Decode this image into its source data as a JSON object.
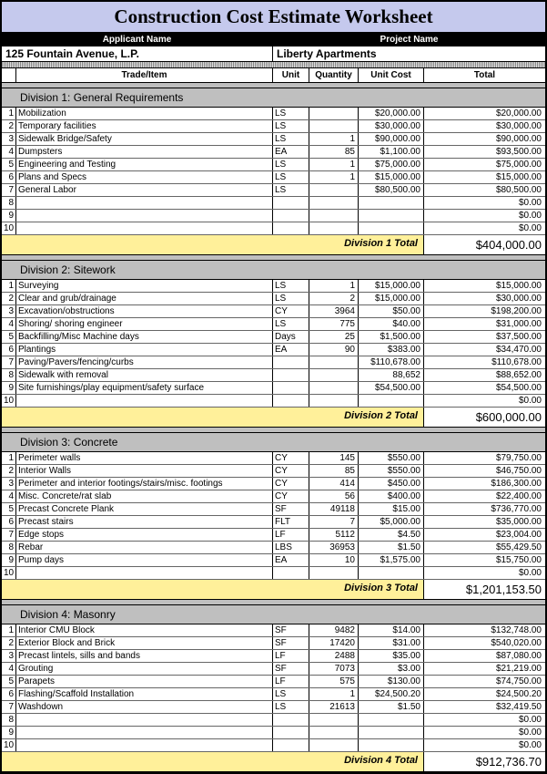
{
  "title": "Construction Cost Estimate Worksheet",
  "applicant_label": "Applicant Name",
  "project_label": "Project  Name",
  "applicant_name": "125 Fountain Avenue, L.P.",
  "project_name": "Liberty Apartments",
  "columns": {
    "trade": "Trade/Item",
    "unit": "Unit",
    "qty": "Quantity",
    "cost": "Unit Cost",
    "total": "Total"
  },
  "divisions": [
    {
      "header": "Division 1: General Requirements",
      "total_label": "Division 1 Total",
      "total_value": "$404,000.00",
      "rows": [
        {
          "n": "1",
          "item": "Mobilization",
          "unit": "LS",
          "qty": "",
          "cost": "$20,000.00",
          "total": "$20,000.00"
        },
        {
          "n": "2",
          "item": "Temporary facilities",
          "unit": "LS",
          "qty": "",
          "cost": "$30,000.00",
          "total": "$30,000.00"
        },
        {
          "n": "3",
          "item": "Sidewalk Bridge/Safety",
          "unit": "LS",
          "qty": "1",
          "cost": "$90,000.00",
          "total": "$90,000.00"
        },
        {
          "n": "4",
          "item": "Dumpsters",
          "unit": "EA",
          "qty": "85",
          "cost": "$1,100.00",
          "total": "$93,500.00"
        },
        {
          "n": "5",
          "item": "Engineering and Testing",
          "unit": "LS",
          "qty": "1",
          "cost": "$75,000.00",
          "total": "$75,000.00"
        },
        {
          "n": "6",
          "item": "Plans and Specs",
          "unit": "LS",
          "qty": "1",
          "cost": "$15,000.00",
          "total": "$15,000.00"
        },
        {
          "n": "7",
          "item": "General Labor",
          "unit": "LS",
          "qty": "",
          "cost": "$80,500.00",
          "total": "$80,500.00"
        },
        {
          "n": "8",
          "item": "",
          "unit": "",
          "qty": "",
          "cost": "",
          "total": "$0.00"
        },
        {
          "n": "9",
          "item": "",
          "unit": "",
          "qty": "",
          "cost": "",
          "total": "$0.00"
        },
        {
          "n": "10",
          "item": "",
          "unit": "",
          "qty": "",
          "cost": "",
          "total": "$0.00"
        }
      ]
    },
    {
      "header": "Division 2: Sitework",
      "total_label": "Division 2 Total",
      "total_value": "$600,000.00",
      "rows": [
        {
          "n": "1",
          "item": "Surveying",
          "unit": "LS",
          "qty": "1",
          "cost": "$15,000.00",
          "total": "$15,000.00"
        },
        {
          "n": "2",
          "item": "Clear and grub/drainage",
          "unit": "LS",
          "qty": "2",
          "cost": "$15,000.00",
          "total": "$30,000.00"
        },
        {
          "n": "3",
          "item": "Excavation/obstructions",
          "unit": "CY",
          "qty": "3964",
          "cost": "$50.00",
          "total": "$198,200.00"
        },
        {
          "n": "4",
          "item": "Shoring/ shoring engineer",
          "unit": "LS",
          "qty": "775",
          "cost": "$40.00",
          "total": "$31,000.00"
        },
        {
          "n": "5",
          "item": "Backfilling/Misc Machine days",
          "unit": "Days",
          "qty": "25",
          "cost": "$1,500.00",
          "total": "$37,500.00"
        },
        {
          "n": "6",
          "item": "Plantings",
          "unit": "EA",
          "qty": "90",
          "cost": "$383.00",
          "total": "$34,470.00"
        },
        {
          "n": "7",
          "item": "Paving/Pavers/fencing/curbs",
          "unit": "",
          "qty": "",
          "cost": "$110,678.00",
          "total": "$110,678.00"
        },
        {
          "n": "8",
          "item": "Sidewalk with removal",
          "unit": "",
          "qty": "",
          "cost": "88,652",
          "total": "$88,652.00"
        },
        {
          "n": "9",
          "item": "Site furnishings/play equipment/safety surface",
          "unit": "",
          "qty": "",
          "cost": "$54,500.00",
          "total": "$54,500.00"
        },
        {
          "n": "10",
          "item": "",
          "unit": "",
          "qty": "",
          "cost": "",
          "total": "$0.00"
        }
      ]
    },
    {
      "header": "Division 3: Concrete",
      "total_label": "Division 3 Total",
      "total_value": "$1,201,153.50",
      "rows": [
        {
          "n": "1",
          "item": "Perimeter walls",
          "unit": "CY",
          "qty": "145",
          "cost": "$550.00",
          "total": "$79,750.00"
        },
        {
          "n": "2",
          "item": "Interior Walls",
          "unit": "CY",
          "qty": "85",
          "cost": "$550.00",
          "total": "$46,750.00"
        },
        {
          "n": "3",
          "item": "Perimeter and interior footings/stairs/misc. footings",
          "unit": "CY",
          "qty": "414",
          "cost": "$450.00",
          "total": "$186,300.00"
        },
        {
          "n": "4",
          "item": "Misc. Concrete/rat slab",
          "unit": "CY",
          "qty": "56",
          "cost": "$400.00",
          "total": "$22,400.00"
        },
        {
          "n": "5",
          "item": "Precast Concrete Plank",
          "unit": "SF",
          "qty": "49118",
          "cost": "$15.00",
          "total": "$736,770.00"
        },
        {
          "n": "6",
          "item": "Precast stairs",
          "unit": "FLT",
          "qty": "7",
          "cost": "$5,000.00",
          "total": "$35,000.00"
        },
        {
          "n": "7",
          "item": "Edge stops",
          "unit": "LF",
          "qty": "5112",
          "cost": "$4.50",
          "total": "$23,004.00"
        },
        {
          "n": "8",
          "item": "Rebar",
          "unit": "LBS",
          "qty": "36953",
          "cost": "$1.50",
          "total": "$55,429.50"
        },
        {
          "n": "9",
          "item": "Pump days",
          "unit": "EA",
          "qty": "10",
          "cost": "$1,575.00",
          "total": "$15,750.00"
        },
        {
          "n": "10",
          "item": "",
          "unit": "",
          "qty": "",
          "cost": "",
          "total": "$0.00"
        }
      ]
    },
    {
      "header": "Division 4: Masonry",
      "total_label": "Division 4 Total",
      "total_value": "$912,736.70",
      "rows": [
        {
          "n": "1",
          "item": "Interior CMU Block",
          "unit": "SF",
          "qty": "9482",
          "cost": "$14.00",
          "total": "$132,748.00"
        },
        {
          "n": "2",
          "item": "Exterior Block and Brick",
          "unit": "SF",
          "qty": "17420",
          "cost": "$31.00",
          "total": "$540,020.00"
        },
        {
          "n": "3",
          "item": "Precast lintels, sills and bands",
          "unit": "LF",
          "qty": "2488",
          "cost": "$35.00",
          "total": "$87,080.00"
        },
        {
          "n": "4",
          "item": "Grouting",
          "unit": "SF",
          "qty": "7073",
          "cost": "$3.00",
          "total": "$21,219.00"
        },
        {
          "n": "5",
          "item": "Parapets",
          "unit": "LF",
          "qty": "575",
          "cost": "$130.00",
          "total": "$74,750.00"
        },
        {
          "n": "6",
          "item": "Flashing/Scaffold Installation",
          "unit": "LS",
          "qty": "1",
          "cost": "$24,500.20",
          "total": "$24,500.20"
        },
        {
          "n": "7",
          "item": "Washdown",
          "unit": "LS",
          "qty": "21613",
          "cost": "$1.50",
          "total": "$32,419.50"
        },
        {
          "n": "8",
          "item": "",
          "unit": "",
          "qty": "",
          "cost": "",
          "total": "$0.00"
        },
        {
          "n": "9",
          "item": "",
          "unit": "",
          "qty": "",
          "cost": "",
          "total": "$0.00"
        },
        {
          "n": "10",
          "item": "",
          "unit": "",
          "qty": "",
          "cost": "",
          "total": "$0.00"
        }
      ]
    }
  ]
}
